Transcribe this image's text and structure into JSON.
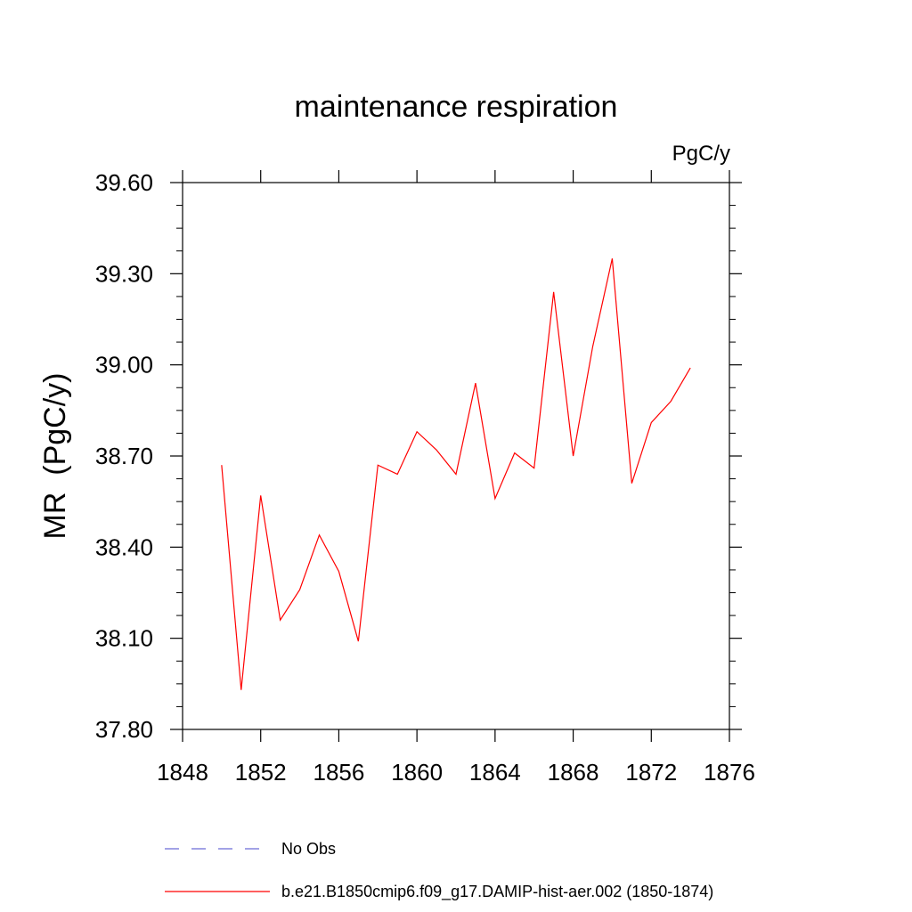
{
  "chart_data": {
    "type": "line",
    "title": "maintenance respiration",
    "units_label": "PgC/y",
    "ylabel": "MR  (PgC/y)",
    "xlabel": "",
    "xlim": [
      1848,
      1876
    ],
    "ylim": [
      37.8,
      39.6
    ],
    "x_ticks": [
      1848,
      1852,
      1856,
      1860,
      1864,
      1868,
      1872,
      1876
    ],
    "x_tick_labels": [
      "1848",
      "1852",
      "1856",
      "1860",
      "1864",
      "1868",
      "1872",
      "1876"
    ],
    "y_ticks": [
      37.8,
      38.1,
      38.4,
      38.7,
      39.0,
      39.3,
      39.6
    ],
    "y_tick_labels": [
      "37.80",
      "38.10",
      "38.40",
      "38.70",
      "39.00",
      "39.30",
      "39.60"
    ],
    "grid": false,
    "legend_position": "bottom",
    "series": [
      {
        "name": "b.e21.B1850cmip6.f09_g17.DAMIP-hist-aer.002 (1850-1874)",
        "color": "#ff0000",
        "style": "solid",
        "x": [
          1850,
          1851,
          1852,
          1853,
          1854,
          1855,
          1856,
          1857,
          1858,
          1859,
          1860,
          1861,
          1862,
          1863,
          1864,
          1865,
          1866,
          1867,
          1868,
          1869,
          1870,
          1871,
          1872,
          1873,
          1874
        ],
        "values": [
          38.67,
          37.93,
          38.57,
          38.16,
          38.26,
          38.44,
          38.32,
          38.09,
          38.67,
          38.64,
          38.78,
          38.72,
          38.64,
          38.94,
          38.56,
          38.71,
          38.66,
          39.24,
          38.7,
          39.06,
          39.35,
          38.61,
          38.81,
          38.88,
          38.99
        ]
      }
    ],
    "legend": [
      {
        "label": "No Obs",
        "color": "#6a6ad8",
        "style": "dashed"
      },
      {
        "label": "b.e21.B1850cmip6.f09_g17.DAMIP-hist-aer.002 (1850-1874)",
        "color": "#ff0000",
        "style": "solid"
      }
    ]
  }
}
